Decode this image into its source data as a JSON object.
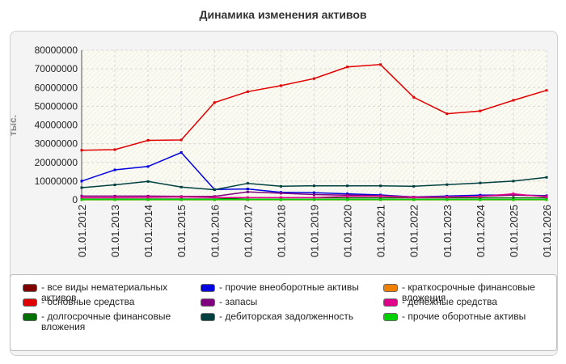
{
  "chart_data": {
    "type": "line",
    "title": "Динамика изменения активов",
    "ylabel": "тыс.",
    "ylim": [
      0,
      80000000
    ],
    "yticks": [
      "0",
      "10000000",
      "20000000",
      "30000000",
      "40000000",
      "50000000",
      "60000000",
      "70000000",
      "80000000"
    ],
    "categories": [
      "01.01.2012",
      "01.01.2013",
      "01.01.2014",
      "01.01.2015",
      "01.01.2016",
      "01.01.2017",
      "01.01.2018",
      "01.01.2019",
      "01.01.2020",
      "01.01.2021",
      "01.01.2022",
      "01.01.2023",
      "01.01.2024",
      "01.01.2025",
      "01.01.2026"
    ],
    "grid": true,
    "legend_position": "bottom",
    "series": [
      {
        "name": "- все виды нематериальных активов",
        "color": "#800000",
        "values": [
          100000,
          100000,
          100000,
          100000,
          100000,
          100000,
          100000,
          100000,
          100000,
          100000,
          100000,
          100000,
          100000,
          100000,
          100000
        ]
      },
      {
        "name": "- основные средства",
        "color": "#e00000",
        "values": [
          26500000,
          26800000,
          31800000,
          32000000,
          52000000,
          57800000,
          61000000,
          64800000,
          71000000,
          72300000,
          54800000,
          46000000,
          47500000,
          53200000,
          58500000
        ]
      },
      {
        "name": "- долгосрочные финансовые вложения",
        "color": "#007000",
        "values": [
          400000,
          400000,
          400000,
          400000,
          400000,
          1000000,
          1000000,
          1000000,
          1000000,
          1000000,
          1000000,
          1000000,
          1000000,
          1000000,
          1000000
        ]
      },
      {
        "name": "- прочие внеоборотные активы",
        "color": "#0000e0",
        "values": [
          10000000,
          16000000,
          17800000,
          25300000,
          5500000,
          5800000,
          4000000,
          3800000,
          3200000,
          2600000,
          1500000,
          2000000,
          2500000,
          2600000,
          2200000
        ]
      },
      {
        "name": "- запасы",
        "color": "#800080",
        "values": [
          2000000,
          2000000,
          2000000,
          1800000,
          1800000,
          4200000,
          3500000,
          2800000,
          2500000,
          2200000,
          1500000,
          1500000,
          1800000,
          2500000,
          2000000
        ]
      },
      {
        "name": "- дебиторская задолженность",
        "color": "#004040",
        "values": [
          6500000,
          8000000,
          9800000,
          6800000,
          5400000,
          8800000,
          7200000,
          7500000,
          7500000,
          7500000,
          7200000,
          8100000,
          9000000,
          10000000,
          12000000
        ]
      },
      {
        "name": "- краткосрочные финансовые вложения",
        "color": "#f08000",
        "values": [
          0,
          0,
          0,
          0,
          0,
          0,
          0,
          0,
          0,
          0,
          0,
          0,
          0,
          0,
          0
        ]
      },
      {
        "name": "- денежные средства",
        "color": "#e0008a",
        "values": [
          1200000,
          1200000,
          1300000,
          1500000,
          1200000,
          1200000,
          1200000,
          1200000,
          1800000,
          1800000,
          1200000,
          1500000,
          1800000,
          3200000,
          1500000
        ]
      },
      {
        "name": "- прочие оборотные активы",
        "color": "#00d000",
        "values": [
          100000,
          100000,
          100000,
          100000,
          100000,
          100000,
          100000,
          100000,
          100000,
          100000,
          100000,
          100000,
          100000,
          100000,
          100000
        ]
      }
    ]
  }
}
